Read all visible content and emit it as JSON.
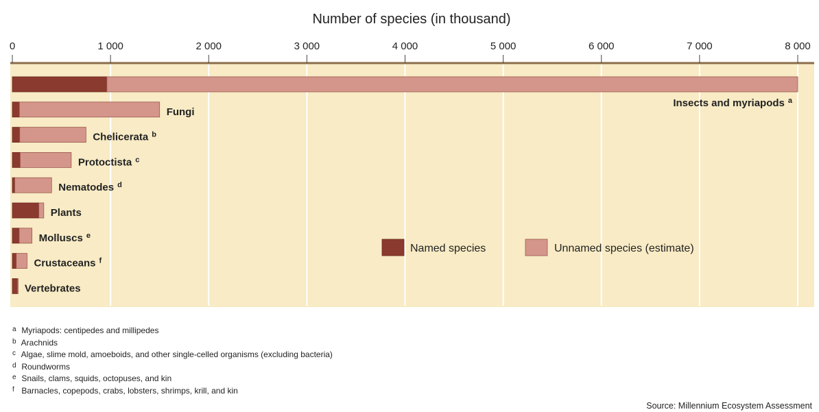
{
  "chart_data": {
    "type": "bar",
    "orientation": "horizontal",
    "stacked": true,
    "title": "Number of species (in thousand)",
    "x_ticks": [
      "0",
      "1 000",
      "2 000",
      "3 000",
      "4 000",
      "5 000",
      "6 000",
      "7 000",
      "8 000"
    ],
    "xlim": [
      0,
      8000
    ],
    "grid": true,
    "categories": [
      {
        "label": "Insects and myriapods",
        "marker": "a"
      },
      {
        "label": "Fungi",
        "marker": ""
      },
      {
        "label": "Chelicerata",
        "marker": "b"
      },
      {
        "label": "Protoctista",
        "marker": "c"
      },
      {
        "label": "Nematodes",
        "marker": "d"
      },
      {
        "label": "Plants",
        "marker": ""
      },
      {
        "label": "Molluscs",
        "marker": "e"
      },
      {
        "label": "Crustaceans",
        "marker": "f"
      },
      {
        "label": "Vertebrates",
        "marker": ""
      }
    ],
    "series": [
      {
        "name": "Named species",
        "color": "#8b3a2f",
        "values": [
          963,
          72,
          75,
          80,
          25,
          270,
          70,
          40,
          52
        ]
      },
      {
        "name": "Unnamed species (estimate)",
        "color": "#d4958a",
        "values": [
          7037,
          1428,
          675,
          520,
          375,
          50,
          130,
          110,
          3
        ]
      }
    ],
    "legend_position": "center-right",
    "colors": {
      "plot_background": "#f8ebc5",
      "grid": "#ffffff",
      "named": "#8b3a2f",
      "unnamed": "#d4958a"
    }
  },
  "footnotes": [
    {
      "letter": "a",
      "text": "Myriapods: centipedes and millipedes"
    },
    {
      "letter": "b",
      "text": "Arachnids"
    },
    {
      "letter": "c",
      "text": "Algae, slime mold, amoeboids, and other single-celled organisms (excluding bacteria)"
    },
    {
      "letter": "d",
      "text": "Roundworms"
    },
    {
      "letter": "e",
      "text": "Snails, clams, squids, octopuses, and kin"
    },
    {
      "letter": "f",
      "text": "Barnacles, copepods, crabs, lobsters, shrimps, krill, and kin"
    }
  ],
  "source": "Source: Millennium Ecosystem Assessment"
}
